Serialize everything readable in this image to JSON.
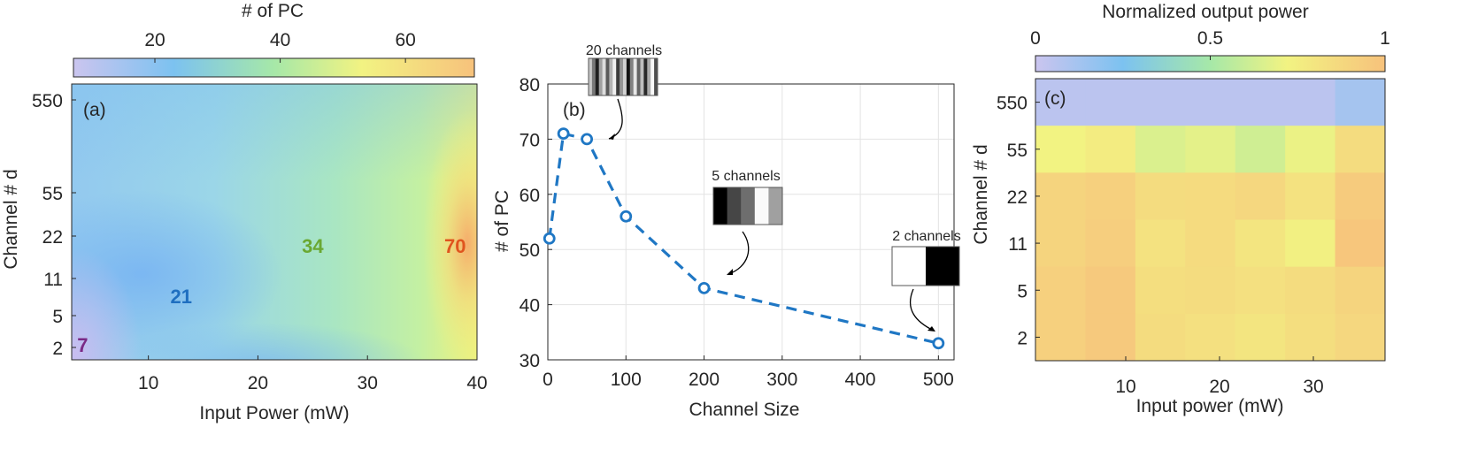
{
  "chart_data": [
    {
      "type": "heatmap",
      "panel_label": "(a)",
      "colorbar_label": "# of PC",
      "colorbar_ticks": [
        20,
        40,
        60
      ],
      "colorbar_range": [
        7,
        71
      ],
      "xlabel": "Input Power (mW)",
      "ylabel": "Channel  #  d",
      "xlim": [
        3,
        40
      ],
      "xticks": [
        10,
        20,
        30,
        40
      ],
      "yticks": [
        "2",
        "5",
        "11",
        "22",
        "55",
        "550"
      ],
      "annotations": [
        {
          "text": "7",
          "x": 4,
          "y": "2",
          "color": "#7a2a86"
        },
        {
          "text": "21",
          "x": 13,
          "y": "11",
          "color": "#1f6fc0"
        },
        {
          "text": "34",
          "x": 25,
          "y": "22",
          "color": "#6aa832"
        },
        {
          "text": "70",
          "x": 38,
          "y": "22",
          "color": "#e0541e"
        }
      ]
    },
    {
      "type": "line",
      "panel_label": "(b)",
      "xlabel": "Channel Size",
      "ylabel": "# of PC",
      "xlim": [
        0,
        520
      ],
      "ylim": [
        30,
        80
      ],
      "xticks": [
        0,
        100,
        200,
        300,
        400,
        500
      ],
      "yticks": [
        30,
        40,
        50,
        60,
        70,
        80
      ],
      "grid": true,
      "series": [
        {
          "x": [
            2,
            20,
            50,
            100,
            200,
            500
          ],
          "y": [
            52,
            71,
            70,
            56,
            43,
            33
          ],
          "color": "#1f77c4"
        }
      ],
      "insets": [
        {
          "label": "20 channels",
          "stripes": 20
        },
        {
          "label": "5 channels",
          "stripes": 5
        },
        {
          "label": "2 channels",
          "stripes": 2
        }
      ]
    },
    {
      "type": "heatmap",
      "panel_label": "(c)",
      "colorbar_label": "Normalized output power",
      "colorbar_ticks": [
        "0",
        "0.5",
        "1"
      ],
      "xlabel": "Input power (mW)",
      "ylabel": "Channel  #  d",
      "xticks": [
        10,
        20,
        30
      ],
      "yticks": [
        "2",
        "5",
        "11",
        "22",
        "55",
        "550"
      ],
      "columns": 7,
      "values": [
        [
          0.05,
          0.05,
          0.05,
          0.05,
          0.05,
          0.05,
          0.12
        ],
        [
          0.72,
          0.76,
          0.65,
          0.68,
          0.62,
          0.7,
          0.85
        ],
        [
          0.9,
          0.92,
          0.85,
          0.86,
          0.88,
          0.82,
          0.95
        ],
        [
          0.9,
          0.93,
          0.82,
          0.86,
          0.8,
          0.74,
          0.98
        ],
        [
          0.92,
          0.96,
          0.84,
          0.85,
          0.83,
          0.85,
          0.9
        ],
        [
          0.92,
          0.96,
          0.85,
          0.83,
          0.8,
          0.84,
          0.88
        ]
      ]
    }
  ]
}
